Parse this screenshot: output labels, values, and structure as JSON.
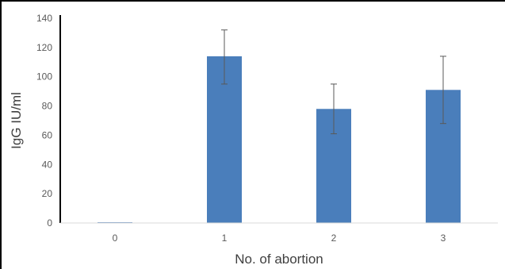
{
  "chart_data": {
    "type": "bar",
    "title": "",
    "xlabel": "No. of abortion",
    "ylabel": "IgG  IU/ml",
    "categories": [
      "0",
      "1",
      "2",
      "3"
    ],
    "values": [
      0.5,
      114,
      78,
      91
    ],
    "error_low": [
      0,
      95,
      61,
      68
    ],
    "error_high": [
      1,
      132,
      95,
      114
    ],
    "ylim": [
      0,
      140
    ],
    "yticks": [
      0,
      20,
      40,
      60,
      80,
      100,
      120,
      140
    ],
    "grid": false,
    "legend": "none",
    "bar_color": "#4a7ebb",
    "axis_color": "#000000",
    "error_bar_color": "#595959"
  }
}
